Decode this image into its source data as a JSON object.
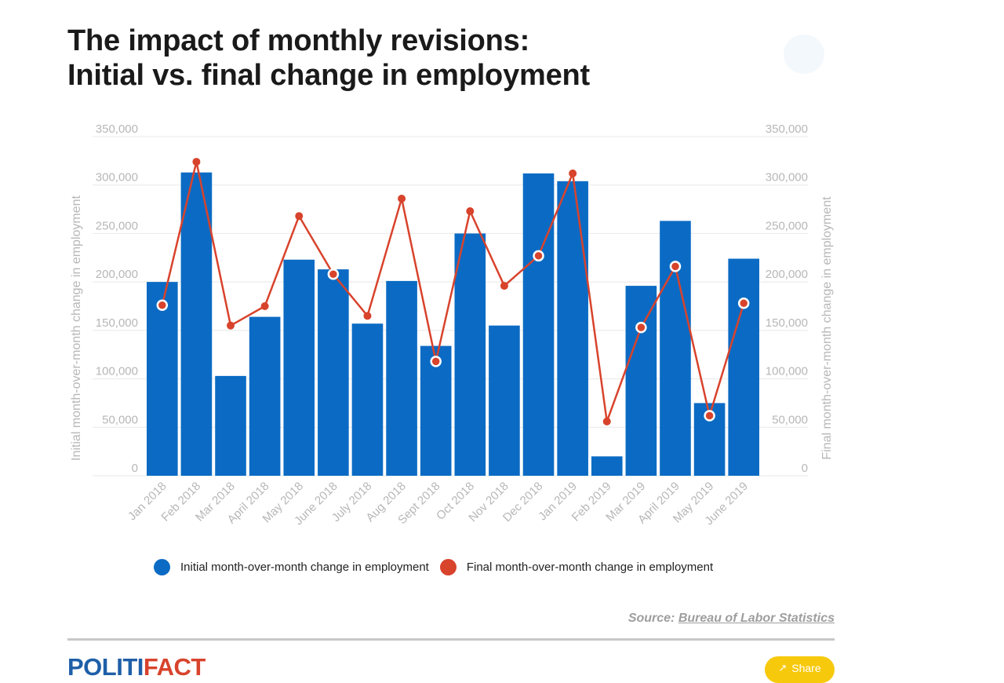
{
  "title": {
    "line1": "The impact of monthly revisions:",
    "line2": "Initial vs. final change in employment"
  },
  "chart_data": {
    "type": "bar",
    "categories": [
      "Jan 2018",
      "Feb 2018",
      "Mar 2018",
      "April 2018",
      "May 2018",
      "June 2018",
      "July 2018",
      "Aug 2018",
      "Sept 2018",
      "Oct 2018",
      "Nov 2018",
      "Dec 2018",
      "Jan 2019",
      "Feb 2019",
      "Mar 2019",
      "April 2019",
      "May 2019",
      "June 2019"
    ],
    "series": [
      {
        "name": "Initial month-over-month change in employment",
        "type": "bar",
        "color": "#0b6bc4",
        "values": [
          200000,
          313000,
          103000,
          164000,
          223000,
          213000,
          157000,
          201000,
          134000,
          250000,
          155000,
          312000,
          304000,
          20000,
          196000,
          263000,
          75000,
          224000
        ]
      },
      {
        "name": "Final month-over-month change in employment",
        "type": "line",
        "color": "#d8432c",
        "values": [
          176000,
          324000,
          155000,
          175000,
          268000,
          208000,
          165000,
          286000,
          118000,
          273000,
          196000,
          227000,
          312000,
          56000,
          153000,
          216000,
          62000,
          178000
        ]
      }
    ],
    "ylabel": "Initial month-over-month change in employment",
    "y2label": "Final month-over-month change in employment",
    "ylim": [
      0,
      350000
    ],
    "yticks": [
      "0",
      "50,000",
      "100,000",
      "150,000",
      "200,000",
      "250,000",
      "300,000",
      "350,000"
    ],
    "grid": true,
    "legend_position": "bottom"
  },
  "legend": {
    "initial": "Initial month-over-month change in employment",
    "final": "Final month-over-month change in employment",
    "initial_color": "#0b6bc4",
    "final_color": "#d8432c"
  },
  "source": {
    "label": "Source:",
    "link_text": "Bureau of Labor Statistics"
  },
  "footer": {
    "logo_part1": "POLITI",
    "logo_part2": "FACT",
    "share_icon": "share-icon",
    "share_label": "Share"
  }
}
